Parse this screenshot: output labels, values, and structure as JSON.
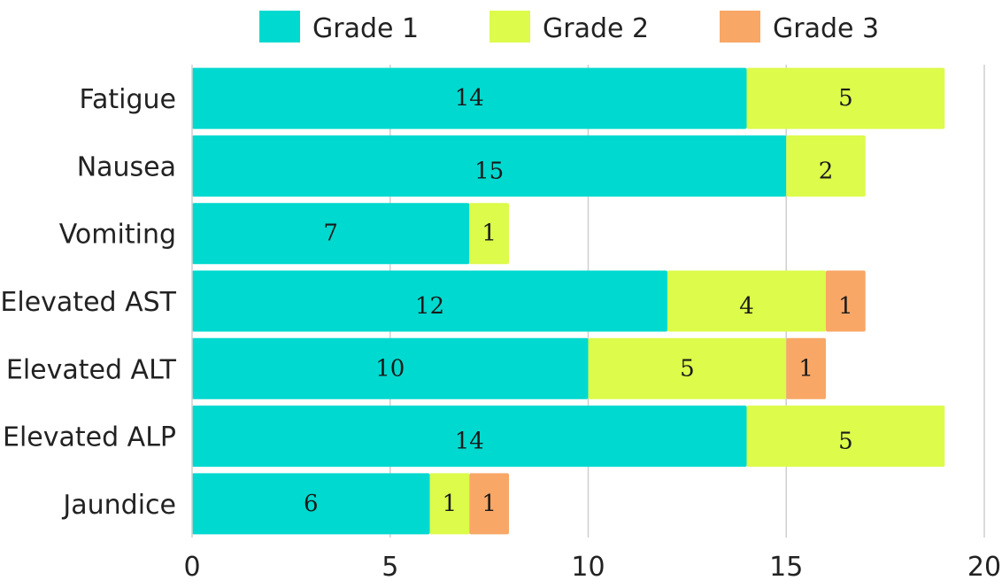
{
  "chart_data": {
    "type": "bar",
    "orientation": "horizontal",
    "stacked": true,
    "categories": [
      "Fatigue",
      "Nausea",
      "Vomiting",
      "Elevated AST",
      "Elevated ALT",
      "Elevated ALP",
      "Jaundice"
    ],
    "series": [
      {
        "name": "Grade 1",
        "color": "#00d9cf",
        "values": [
          14,
          15,
          7,
          12,
          10,
          14,
          6
        ]
      },
      {
        "name": "Grade 2",
        "color": "#dcfb4a",
        "values": [
          5,
          2,
          1,
          4,
          5,
          5,
          1
        ]
      },
      {
        "name": "Grade 3",
        "color": "#f8a766",
        "values": [
          0,
          0,
          0,
          1,
          1,
          0,
          1
        ]
      }
    ],
    "data_labels": [
      [
        "14",
        "15",
        "7",
        "12",
        "10",
        "14",
        "6"
      ],
      [
        "5",
        "2",
        "1",
        "4",
        "5",
        "5",
        "1"
      ],
      [
        "",
        "",
        "",
        "1",
        "1",
        "",
        "1"
      ]
    ],
    "x_ticks": [
      0,
      5,
      10,
      15,
      20
    ],
    "xlim": [
      0,
      20
    ],
    "grid": true,
    "legend_position": "top",
    "title": "",
    "xlabel": "",
    "ylabel": ""
  }
}
